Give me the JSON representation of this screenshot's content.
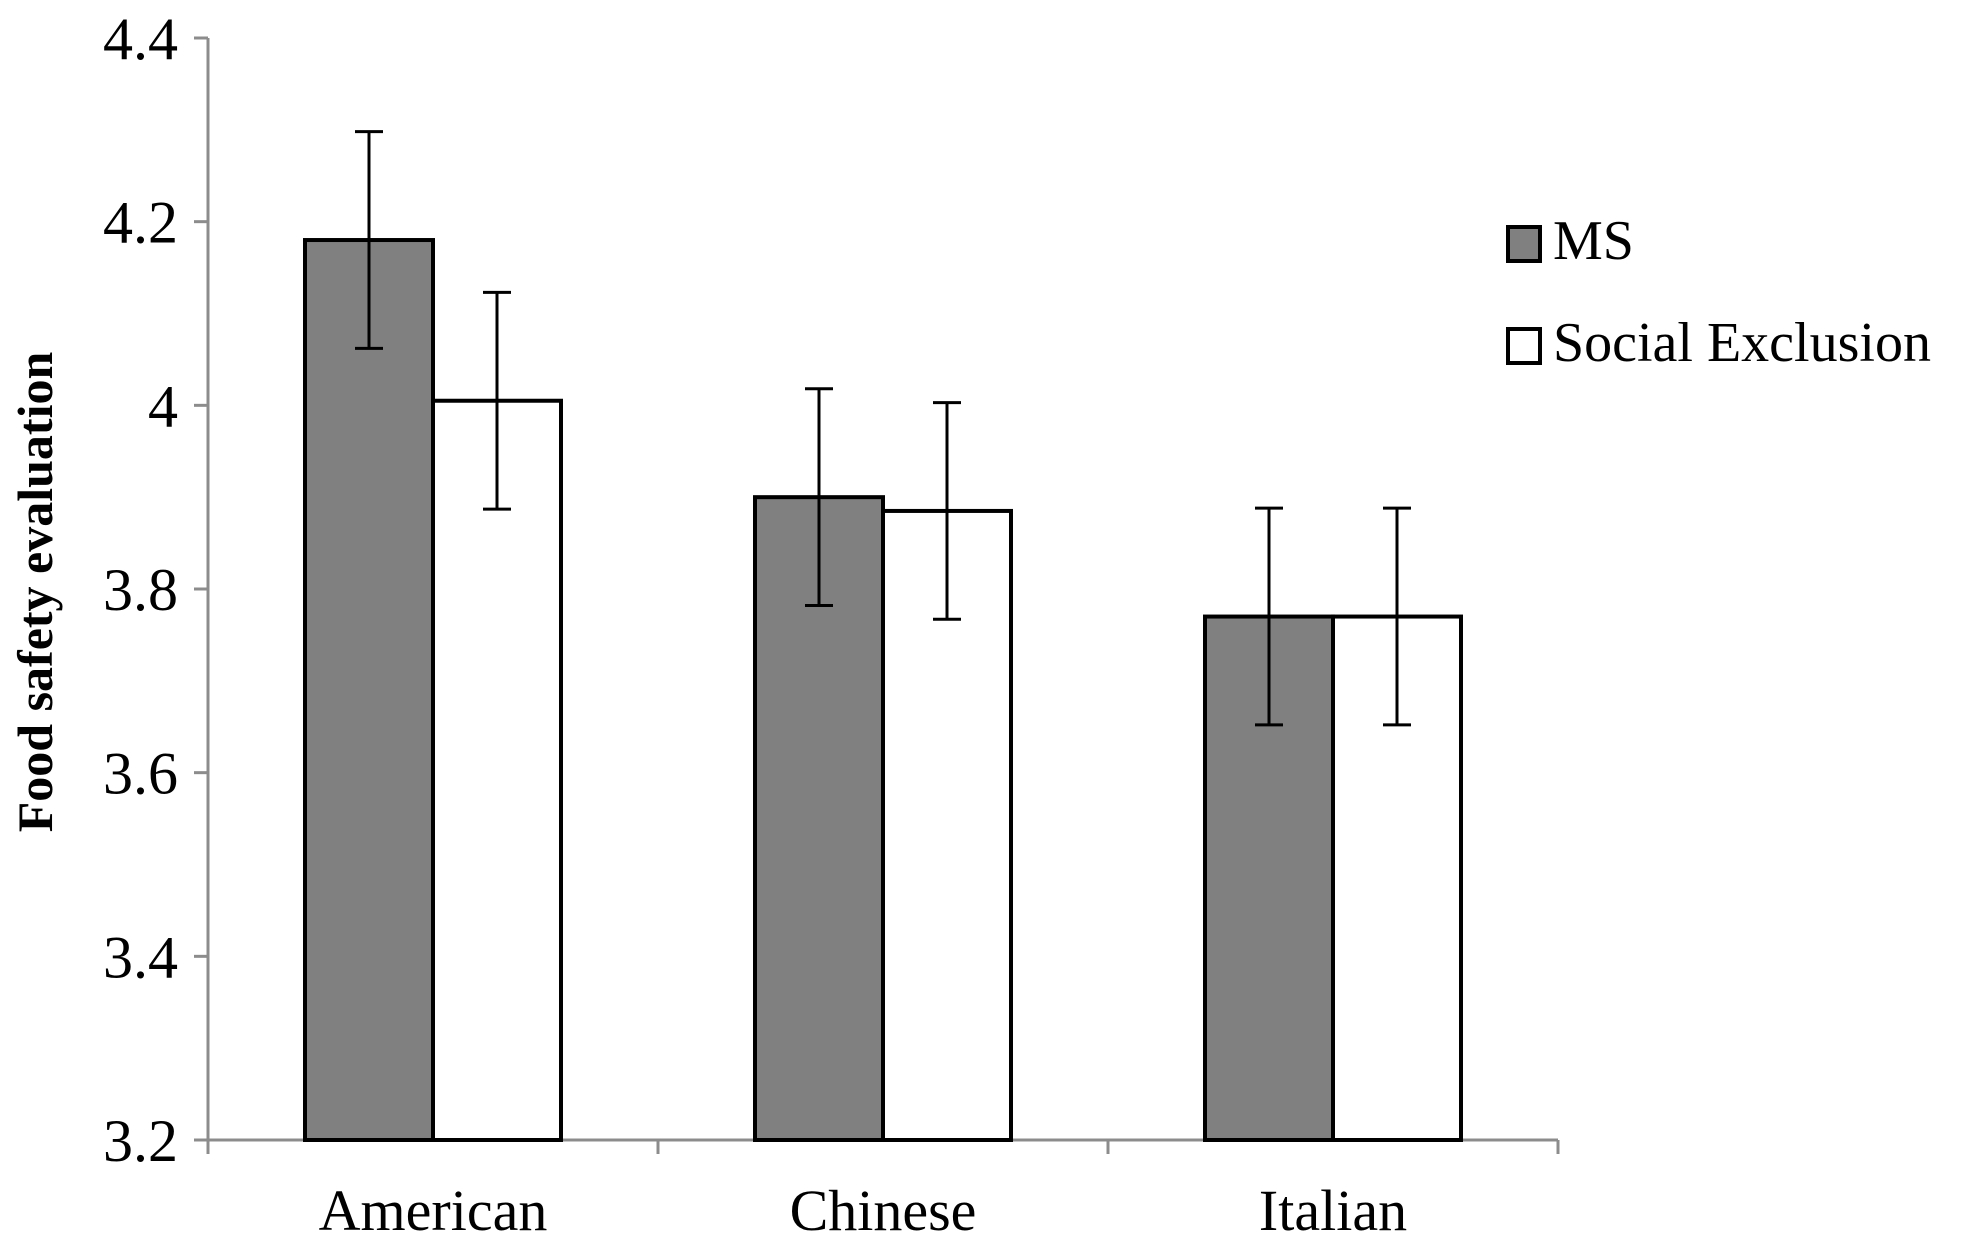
{
  "chart_data": {
    "type": "bar",
    "categories": [
      "American",
      "Chinese",
      "Italian"
    ],
    "series": [
      {
        "name": "MS",
        "color": "#808080",
        "values": [
          4.18,
          3.9,
          3.77
        ],
        "error": [
          0.118,
          0.118,
          0.118
        ]
      },
      {
        "name": "Social Exclusion",
        "color": "#ffffff",
        "values": [
          4.005,
          3.885,
          3.77
        ],
        "error": [
          0.118,
          0.118,
          0.118
        ]
      }
    ],
    "title": "",
    "xlabel": "",
    "ylabel": "Food safety evaluation",
    "ylim": [
      3.2,
      4.4
    ],
    "yticks": [
      "3.2",
      "3.4",
      "3.6",
      "3.8",
      "4",
      "4.2",
      "4.4"
    ],
    "grid": false,
    "legend_position": "right"
  }
}
